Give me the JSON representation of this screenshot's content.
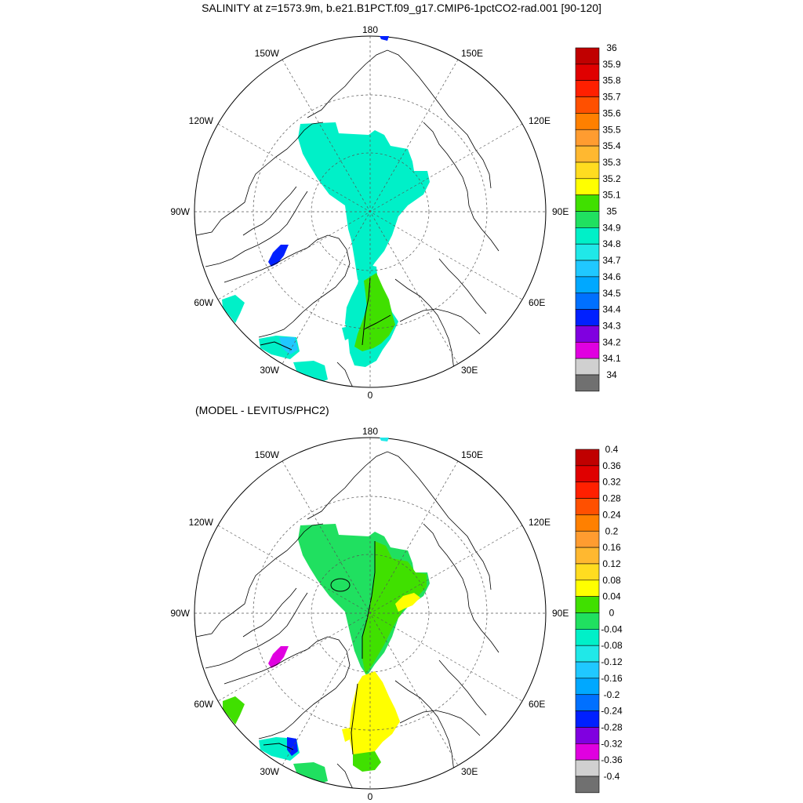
{
  "title": "SALINITY at z=1573.9m, b.e21.B1PCT.f09_g17.CMIP6-1pctCO2-rad.001 [90-120]",
  "subtitle": "(MODEL - LEVITUS/PHC2)",
  "lon_labels": {
    "top": "180",
    "bottom": "0",
    "left": "90W",
    "right": "90E",
    "upper_left": [
      "150W",
      "120W"
    ],
    "upper_right": [
      "150E",
      "120E"
    ],
    "lower_left": [
      "60W",
      "30W"
    ],
    "lower_right": [
      "60E",
      "30E"
    ]
  },
  "colors": {
    "land_line": "#000000",
    "grid_line": "#555555"
  },
  "panels": [
    {
      "name": "salinity",
      "colorbar": {
        "labels": [
          "36",
          "35.9",
          "35.8",
          "35.7",
          "35.6",
          "35.5",
          "35.4",
          "35.3",
          "35.2",
          "35.1",
          "35",
          "34.9",
          "34.8",
          "34.7",
          "34.6",
          "34.5",
          "34.4",
          "34.3",
          "34.2",
          "34.1",
          "34"
        ],
        "colors": [
          "#c00000",
          "#e00000",
          "#ff2000",
          "#ff5000",
          "#ff8000",
          "#ff9c30",
          "#ffb830",
          "#ffdc20",
          "#ffff00",
          "#40e000",
          "#20e060",
          "#00f0c8",
          "#20e8e8",
          "#20c8ff",
          "#00a8ff",
          "#0070ff",
          "#0020ff",
          "#8000e0",
          "#e000e0",
          "#d0d0d0",
          "#707070"
        ]
      }
    },
    {
      "name": "difference",
      "colorbar": {
        "labels": [
          "0.4",
          "0.36",
          "0.32",
          "0.28",
          "0.24",
          "0.2",
          "0.16",
          "0.12",
          "0.08",
          "0.04",
          "0",
          "-0.04",
          "-0.08",
          "-0.12",
          "-0.16",
          "-0.2",
          "-0.24",
          "-0.28",
          "-0.32",
          "-0.36",
          "-0.4"
        ],
        "colors": [
          "#c00000",
          "#e00000",
          "#ff2000",
          "#ff5000",
          "#ff8000",
          "#ff9c30",
          "#ffb830",
          "#ffdc20",
          "#ffff00",
          "#40e000",
          "#20e060",
          "#00f0c8",
          "#20e8e8",
          "#20c8ff",
          "#00a8ff",
          "#0070ff",
          "#0020ff",
          "#8000e0",
          "#e000e0",
          "#d0d0d0",
          "#707070"
        ]
      }
    }
  ]
}
